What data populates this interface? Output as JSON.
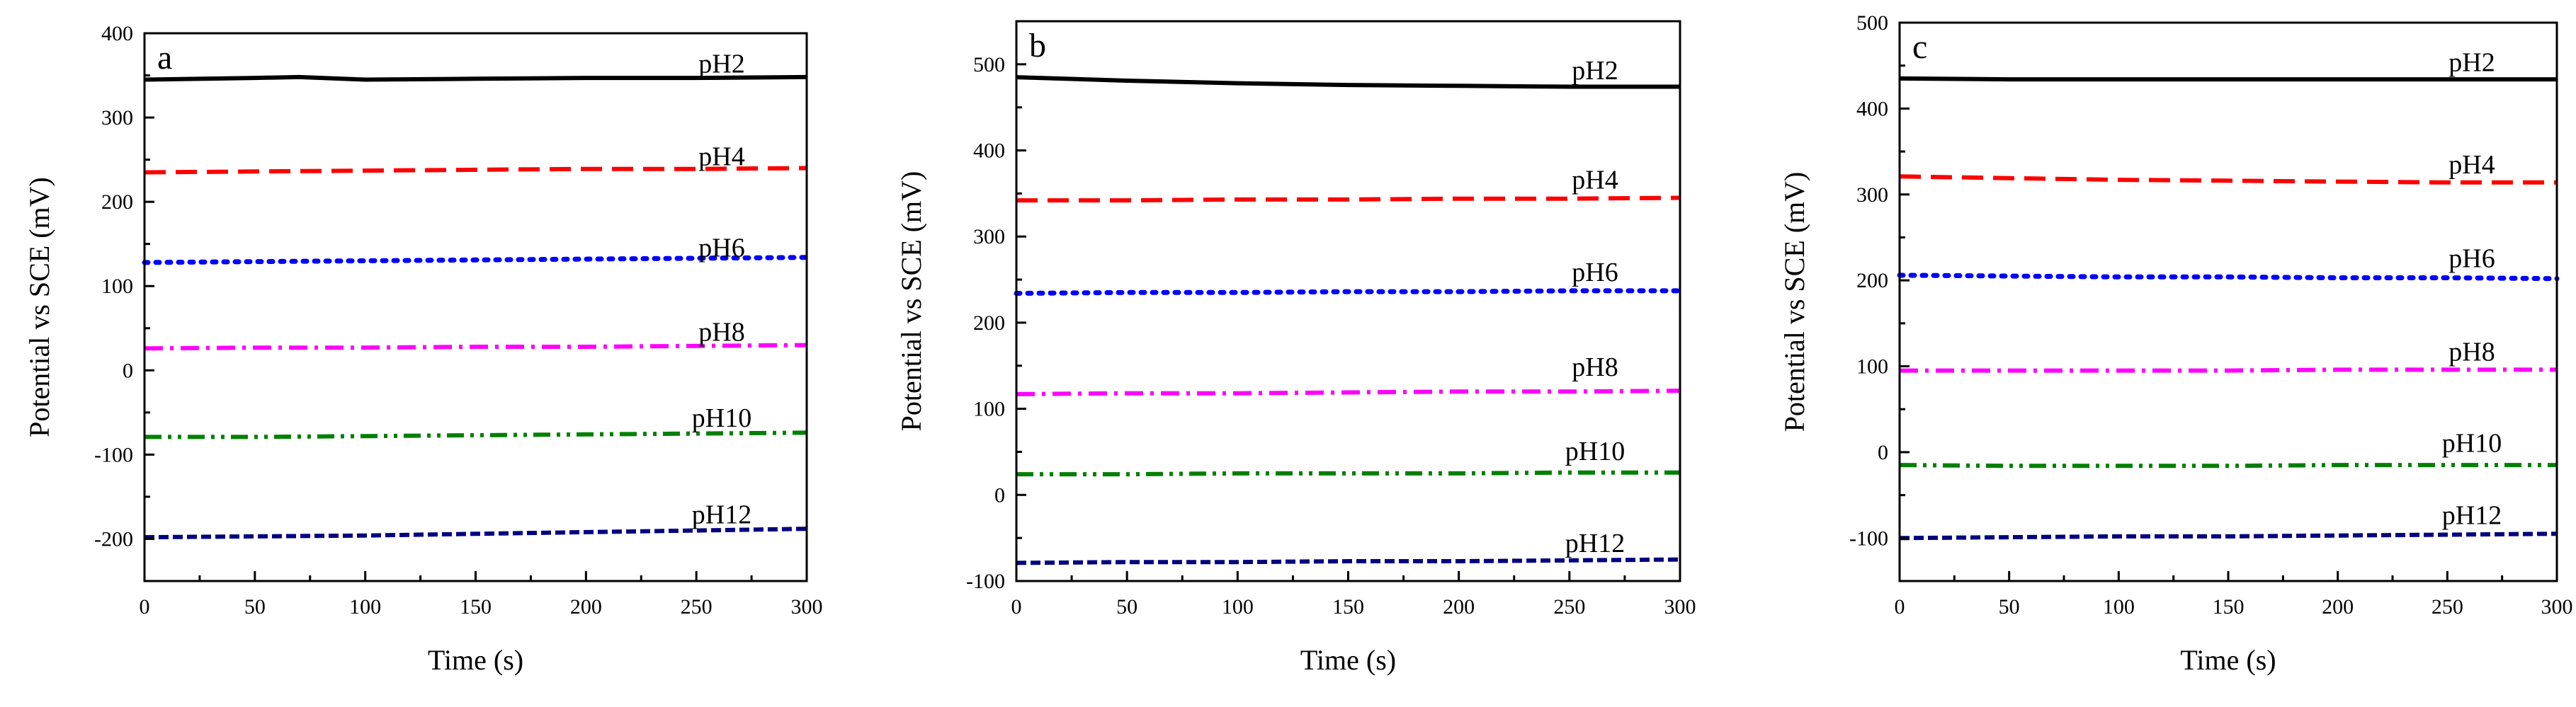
{
  "figure": {
    "panels": [
      "a",
      "b",
      "c"
    ]
  },
  "colors": {
    "pH2": "#000000",
    "pH4": "#ff0000",
    "pH6": "#0000ff",
    "pH8": "#ff00ff",
    "pH10": "#008000",
    "pH12": "#000080"
  },
  "chart_data": [
    {
      "type": "line",
      "panel_label": "a",
      "xlabel": "Time (s)",
      "ylabel": "Potential vs SCE (mV)",
      "xlim": [
        0,
        300
      ],
      "ylim": [
        -250,
        400
      ],
      "xticks": [
        0,
        50,
        100,
        150,
        200,
        250,
        300
      ],
      "yticks": [
        -200,
        -100,
        0,
        100,
        200,
        300,
        400
      ],
      "grid": false,
      "series": [
        {
          "name": "pH2",
          "style": "solid",
          "label_y": 365,
          "x": [
            0,
            50,
            70,
            100,
            150,
            200,
            250,
            300
          ],
          "y": [
            345,
            347,
            348,
            345,
            346,
            347,
            347,
            348
          ]
        },
        {
          "name": "pH4",
          "style": "dash",
          "label_y": 255,
          "x": [
            0,
            50,
            100,
            150,
            200,
            250,
            300
          ],
          "y": [
            235,
            236,
            237,
            238,
            239,
            239,
            240
          ]
        },
        {
          "name": "pH6",
          "style": "dot",
          "label_y": 147,
          "x": [
            0,
            50,
            100,
            150,
            200,
            250,
            300
          ],
          "y": [
            128,
            129,
            130,
            131,
            132,
            133,
            134
          ]
        },
        {
          "name": "pH8",
          "style": "dashdot",
          "label_y": 47,
          "x": [
            0,
            50,
            100,
            150,
            200,
            250,
            300
          ],
          "y": [
            26,
            27,
            27,
            28,
            28,
            29,
            30
          ]
        },
        {
          "name": "pH10",
          "style": "dashdotdot",
          "label_y": -55,
          "x": [
            0,
            50,
            100,
            150,
            200,
            250,
            300
          ],
          "y": [
            -79,
            -79,
            -78,
            -77,
            -76,
            -75,
            -74
          ]
        },
        {
          "name": "pH12",
          "style": "shortdash",
          "label_y": -170,
          "x": [
            0,
            50,
            100,
            150,
            200,
            250,
            300
          ],
          "y": [
            -198,
            -197,
            -196,
            -194,
            -192,
            -190,
            -188
          ]
        }
      ]
    },
    {
      "type": "line",
      "panel_label": "b",
      "xlabel": "Time (s)",
      "ylabel": "Potential vs SCE (mV)",
      "xlim": [
        0,
        300
      ],
      "ylim": [
        -100,
        550
      ],
      "xticks": [
        0,
        50,
        100,
        150,
        200,
        250,
        300
      ],
      "yticks": [
        -100,
        0,
        100,
        200,
        300,
        400,
        500
      ],
      "grid": false,
      "series": [
        {
          "name": "pH2",
          "style": "solid",
          "label_y": 494,
          "x": [
            0,
            50,
            100,
            150,
            200,
            250,
            300
          ],
          "y": [
            485,
            481,
            478,
            476,
            475,
            474,
            474
          ]
        },
        {
          "name": "pH4",
          "style": "dash",
          "label_y": 367,
          "x": [
            0,
            50,
            100,
            150,
            200,
            250,
            300
          ],
          "y": [
            342,
            342,
            343,
            343,
            344,
            344,
            345
          ]
        },
        {
          "name": "pH6",
          "style": "dot",
          "label_y": 260,
          "x": [
            0,
            50,
            100,
            150,
            200,
            250,
            300
          ],
          "y": [
            234,
            235,
            235,
            236,
            236,
            237,
            237
          ]
        },
        {
          "name": "pH8",
          "style": "dashdot",
          "label_y": 150,
          "x": [
            0,
            50,
            100,
            150,
            200,
            250,
            300
          ],
          "y": [
            117,
            118,
            118,
            119,
            120,
            120,
            121
          ]
        },
        {
          "name": "pH10",
          "style": "dashdotdot",
          "label_y": 52,
          "x": [
            0,
            50,
            100,
            150,
            200,
            250,
            300
          ],
          "y": [
            24,
            24,
            25,
            25,
            25,
            26,
            26
          ]
        },
        {
          "name": "pH12",
          "style": "shortdash",
          "label_y": -55,
          "x": [
            0,
            50,
            100,
            150,
            200,
            250,
            300
          ],
          "y": [
            -79,
            -78,
            -78,
            -77,
            -77,
            -76,
            -75
          ]
        }
      ]
    },
    {
      "type": "line",
      "panel_label": "c",
      "xlabel": "Time (s)",
      "ylabel": "Potential vs SCE (mV)",
      "xlim": [
        0,
        300
      ],
      "ylim": [
        -150,
        500
      ],
      "xticks": [
        0,
        50,
        100,
        150,
        200,
        250,
        300
      ],
      "yticks": [
        -100,
        0,
        100,
        200,
        300,
        400,
        500
      ],
      "grid": false,
      "series": [
        {
          "name": "pH2",
          "style": "solid",
          "label_y": 455,
          "x": [
            0,
            50,
            100,
            150,
            200,
            250,
            300
          ],
          "y": [
            435,
            434,
            434,
            434,
            434,
            434,
            434
          ]
        },
        {
          "name": "pH4",
          "style": "dash",
          "label_y": 336,
          "x": [
            0,
            50,
            100,
            150,
            200,
            250,
            300
          ],
          "y": [
            321,
            319,
            317,
            316,
            315,
            314,
            314
          ]
        },
        {
          "name": "pH6",
          "style": "dot",
          "label_y": 227,
          "x": [
            0,
            50,
            100,
            150,
            200,
            250,
            300
          ],
          "y": [
            206,
            205,
            204,
            204,
            203,
            203,
            202
          ]
        },
        {
          "name": "pH8",
          "style": "dashdot",
          "label_y": 118,
          "x": [
            0,
            50,
            100,
            150,
            200,
            250,
            300
          ],
          "y": [
            95,
            95,
            95,
            95,
            96,
            96,
            96
          ]
        },
        {
          "name": "pH10",
          "style": "dashdotdot",
          "label_y": 12,
          "x": [
            0,
            50,
            100,
            150,
            200,
            250,
            300
          ],
          "y": [
            -15,
            -16,
            -16,
            -16,
            -15,
            -15,
            -15
          ]
        },
        {
          "name": "pH12",
          "style": "shortdash",
          "label_y": -72,
          "x": [
            0,
            50,
            100,
            150,
            200,
            250,
            300
          ],
          "y": [
            -100,
            -99,
            -98,
            -98,
            -97,
            -96,
            -95
          ]
        }
      ]
    }
  ]
}
